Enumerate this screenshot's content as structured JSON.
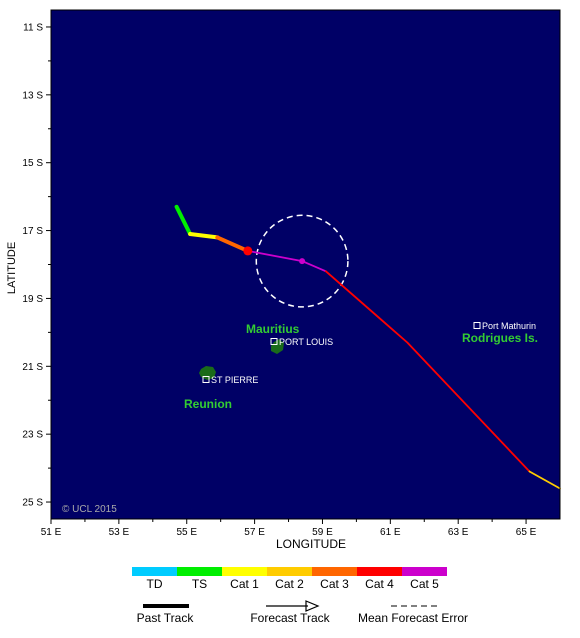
{
  "map": {
    "xlabel": "LONGITUDE",
    "ylabel": "LATITUDE",
    "lon_ticks": [
      "51 E",
      "53 E",
      "55 E",
      "57 E",
      "59 E",
      "61 E",
      "63 E",
      "65 E"
    ],
    "lat_ticks": [
      "11 S",
      "13 S",
      "15 S",
      "17 S",
      "19 S",
      "21 S",
      "23 S",
      "25 S"
    ],
    "copyright": "© UCL 2015",
    "colors": {
      "ocean": "#000066",
      "land": "#1a6b1a",
      "label_green": "#33cc33",
      "uncertainty": "#ffffff"
    }
  },
  "places": {
    "mauritius_label": "Mauritius",
    "port_louis": "PORT LOUIS",
    "reunion_label": "Reunion",
    "st_pierre": "ST PIERRE",
    "rodrigues_label": "Rodrigues Is.",
    "port_mathurin": "Port Mathurin"
  },
  "track": {
    "past_segments": [
      {
        "category": "TS",
        "color": "#00ee00",
        "points": [
          [
            54.7,
            16.3
          ],
          [
            55.1,
            17.1
          ]
        ]
      },
      {
        "category": "Cat 1",
        "color": "#ffff00",
        "points": [
          [
            55.1,
            17.1
          ],
          [
            55.9,
            17.2
          ]
        ]
      },
      {
        "category": "Cat 3",
        "color": "#ff6600",
        "points": [
          [
            55.9,
            17.2
          ],
          [
            56.8,
            17.6
          ]
        ]
      }
    ],
    "current_position": {
      "lon": 56.8,
      "lat": 17.6,
      "color": "#ff0000"
    },
    "forecast_segments": [
      {
        "category": "Cat 5",
        "color": "#cc00cc",
        "points": [
          [
            56.8,
            17.6
          ],
          [
            58.4,
            17.9
          ],
          [
            59.1,
            18.2
          ]
        ]
      },
      {
        "category": "Cat 4",
        "color": "#ff0000",
        "points": [
          [
            59.1,
            18.2
          ],
          [
            61.5,
            20.3
          ],
          [
            65.1,
            24.1
          ]
        ]
      },
      {
        "category": "Cat 2",
        "color": "#ffcc00",
        "points": [
          [
            65.1,
            24.1
          ],
          [
            66.0,
            24.6
          ]
        ]
      }
    ],
    "forecast_point": {
      "lon": 58.4,
      "lat": 17.9
    },
    "uncertainty_radius_deg": 1.35
  },
  "legend": {
    "categories": [
      {
        "label": "TD",
        "color": "#00ccff"
      },
      {
        "label": "TS",
        "color": "#00ee00"
      },
      {
        "label": "Cat 1",
        "color": "#ffff00"
      },
      {
        "label": "Cat 2",
        "color": "#ffcc00"
      },
      {
        "label": "Cat 3",
        "color": "#ff6600"
      },
      {
        "label": "Cat 4",
        "color": "#ff0000"
      },
      {
        "label": "Cat 5",
        "color": "#cc00cc"
      }
    ],
    "past_track": "Past Track",
    "forecast_track": "Forecast Track",
    "mean_error": "Mean Forecast Error"
  }
}
